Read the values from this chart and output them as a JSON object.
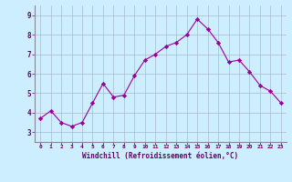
{
  "x": [
    0,
    1,
    2,
    3,
    4,
    5,
    6,
    7,
    8,
    9,
    10,
    11,
    12,
    13,
    14,
    15,
    16,
    17,
    18,
    19,
    20,
    21,
    22,
    23
  ],
  "y": [
    3.7,
    4.1,
    3.5,
    3.3,
    3.5,
    4.5,
    5.5,
    4.8,
    4.9,
    5.9,
    6.7,
    7.0,
    7.4,
    7.6,
    8.0,
    8.8,
    8.3,
    7.6,
    6.6,
    6.7,
    6.1,
    5.4,
    5.1,
    4.5
  ],
  "line_color": "#990099",
  "marker": "D",
  "marker_size": 2.2,
  "bg_color": "#cceeff",
  "grid_color": "#aabbcc",
  "xlabel": "Windchill (Refroidissement éolien,°C)",
  "xlabel_color": "#660066",
  "tick_color": "#660066",
  "spine_color": "#888899",
  "ylim": [
    2.5,
    9.5
  ],
  "xlim": [
    -0.5,
    23.5
  ],
  "yticks": [
    3,
    4,
    5,
    6,
    7,
    8,
    9
  ],
  "xtick_labels": [
    "0",
    "1",
    "2",
    "3",
    "4",
    "5",
    "6",
    "7",
    "8",
    "9",
    "10",
    "11",
    "12",
    "13",
    "14",
    "15",
    "16",
    "17",
    "18",
    "19",
    "20",
    "21",
    "22",
    "23"
  ],
  "fig_bg": "#cceeff"
}
